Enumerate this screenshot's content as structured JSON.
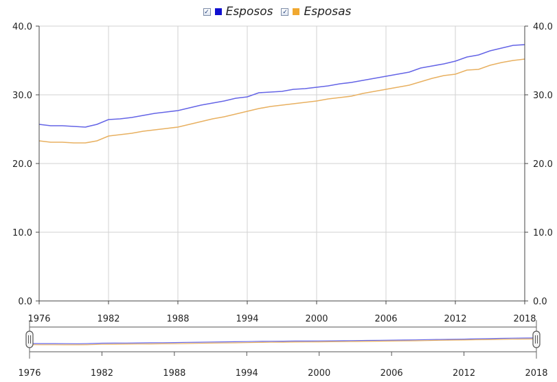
{
  "chart_data": {
    "type": "line",
    "x": [
      1976,
      1977,
      1978,
      1979,
      1980,
      1981,
      1982,
      1983,
      1984,
      1985,
      1986,
      1987,
      1988,
      1989,
      1990,
      1991,
      1992,
      1993,
      1994,
      1995,
      1996,
      1997,
      1998,
      1999,
      2000,
      2001,
      2002,
      2003,
      2004,
      2005,
      2006,
      2007,
      2008,
      2009,
      2010,
      2011,
      2012,
      2013,
      2014,
      2015,
      2016,
      2017,
      2018
    ],
    "series": [
      {
        "name": "Esposos",
        "color": "#6464e6",
        "values": [
          25.7,
          25.5,
          25.5,
          25.4,
          25.3,
          25.7,
          26.4,
          26.5,
          26.7,
          27.0,
          27.3,
          27.5,
          27.7,
          28.1,
          28.5,
          28.8,
          29.1,
          29.5,
          29.7,
          30.3,
          30.4,
          30.5,
          30.8,
          30.9,
          31.1,
          31.3,
          31.6,
          31.8,
          32.1,
          32.4,
          32.7,
          33.0,
          33.3,
          33.9,
          34.2,
          34.5,
          34.9,
          35.5,
          35.8,
          36.4,
          36.8,
          37.2,
          37.3
        ]
      },
      {
        "name": "Esposas",
        "color": "#e8b060",
        "values": [
          23.3,
          23.1,
          23.1,
          23.0,
          23.0,
          23.3,
          24.0,
          24.2,
          24.4,
          24.7,
          24.9,
          25.1,
          25.3,
          25.7,
          26.1,
          26.5,
          26.8,
          27.2,
          27.6,
          28.0,
          28.3,
          28.5,
          28.7,
          28.9,
          29.1,
          29.4,
          29.6,
          29.8,
          30.2,
          30.5,
          30.8,
          31.1,
          31.4,
          31.9,
          32.4,
          32.8,
          33.0,
          33.6,
          33.7,
          34.3,
          34.7,
          35.0,
          35.2
        ]
      }
    ],
    "ylim": [
      0,
      40
    ],
    "y_ticks": [
      "0.0",
      "10.0",
      "20.0",
      "30.0",
      "40.0"
    ],
    "x_ticks": [
      "1976",
      "1982",
      "1988",
      "1994",
      "2000",
      "2006",
      "2012",
      "2018"
    ],
    "grid": true,
    "legend": "top-center"
  },
  "legend": {
    "items": [
      {
        "label": "Esposos",
        "color": "#1010d0"
      },
      {
        "label": "Esposas",
        "color": "#f0a830"
      }
    ]
  }
}
